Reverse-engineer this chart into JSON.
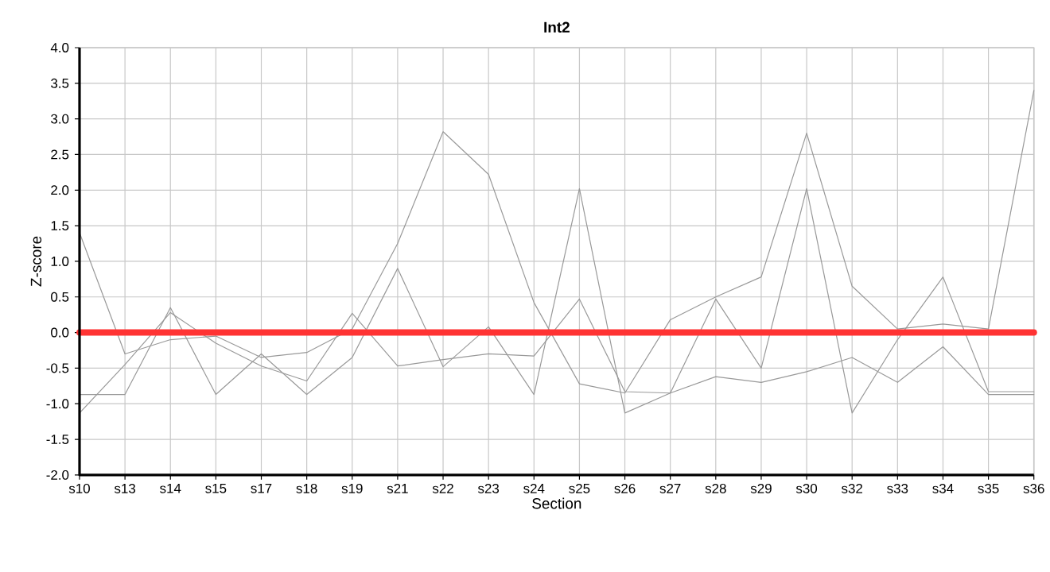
{
  "chart_data": {
    "type": "line",
    "title": "Int2",
    "xlabel": "Section",
    "ylabel": "Z-score",
    "categories": [
      "s10",
      "s13",
      "s14",
      "s15",
      "s17",
      "s18",
      "s19",
      "s21",
      "s22",
      "s23",
      "s24",
      "s25",
      "s26",
      "s27",
      "s28",
      "s29",
      "s30",
      "s32",
      "s33",
      "s34",
      "s35",
      "s36"
    ],
    "series": [
      {
        "color": "#999999",
        "values": [
          1.4,
          -0.3,
          -0.1,
          -0.05,
          -0.35,
          -0.28,
          0.05,
          1.25,
          2.82,
          2.22,
          0.42,
          -0.72,
          -0.85,
          0.18,
          0.5,
          0.78,
          2.8,
          0.65,
          0.05,
          0.12,
          0.05,
          3.4
        ]
      },
      {
        "color": "#999999",
        "values": [
          -0.87,
          -0.87,
          0.35,
          -0.87,
          -0.3,
          -0.87,
          -0.35,
          0.9,
          -0.48,
          0.08,
          -0.87,
          2.02,
          -1.13,
          -0.85,
          0.47,
          -0.5,
          2.02,
          -1.13,
          -0.1,
          0.78,
          -0.83,
          -0.83
        ]
      },
      {
        "color": "#999999",
        "values": [
          -1.13,
          -0.45,
          0.28,
          -0.15,
          -0.47,
          -0.68,
          0.27,
          -0.47,
          -0.38,
          -0.3,
          -0.33,
          0.47,
          -0.83,
          -0.85,
          -0.62,
          -0.7,
          -0.55,
          -0.35,
          -0.7,
          -0.2,
          -0.87,
          -0.87
        ]
      }
    ],
    "ylim": [
      -2,
      4
    ],
    "yticks": [
      {
        "value": -2,
        "label": "-2.0"
      },
      -1.5,
      {
        "value": -1,
        "label": "-1.0"
      },
      -0.5,
      {
        "value": 0,
        "label": "0.0"
      },
      0.5,
      {
        "value": 1,
        "label": "1.0"
      },
      1.5,
      {
        "value": 2,
        "label": "2.0"
      },
      2.5,
      {
        "value": 3,
        "label": "3.0"
      },
      3.5,
      {
        "value": 4,
        "label": "4.0"
      }
    ],
    "ref_lines": [
      {
        "axis": "y",
        "value": 0,
        "color": "#ff3333",
        "line_style": "solid"
      }
    ],
    "grid": true,
    "marker": "none",
    "line_style": "solid"
  }
}
